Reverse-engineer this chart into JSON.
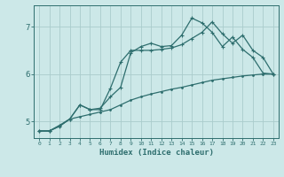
{
  "xlabel": "Humidex (Indice chaleur)",
  "bg_color": "#cce8e8",
  "grid_color": "#aacccc",
  "line_color": "#2e6e6e",
  "xlim": [
    -0.5,
    23.5
  ],
  "ylim": [
    4.65,
    7.45
  ],
  "yticks": [
    5,
    6,
    7
  ],
  "xticks": [
    0,
    1,
    2,
    3,
    4,
    5,
    6,
    7,
    8,
    9,
    10,
    11,
    12,
    13,
    14,
    15,
    16,
    17,
    18,
    19,
    20,
    21,
    22,
    23
  ],
  "line1_x": [
    0,
    1,
    2,
    3,
    4,
    5,
    6,
    7,
    8,
    9,
    10,
    11,
    12,
    13,
    14,
    15,
    16,
    17,
    18,
    19,
    20,
    21,
    22,
    23
  ],
  "line1_y": [
    4.8,
    4.8,
    4.9,
    5.05,
    5.1,
    5.15,
    5.2,
    5.25,
    5.35,
    5.45,
    5.52,
    5.58,
    5.63,
    5.68,
    5.72,
    5.77,
    5.82,
    5.87,
    5.9,
    5.93,
    5.96,
    5.98,
    6.0,
    6.0
  ],
  "line2_x": [
    0,
    1,
    2,
    3,
    4,
    5,
    6,
    7,
    8,
    9,
    10,
    11,
    12,
    13,
    14,
    15,
    16,
    17,
    18,
    19,
    20,
    21,
    22,
    23
  ],
  "line2_y": [
    4.8,
    4.8,
    4.9,
    5.05,
    5.35,
    5.25,
    5.25,
    5.7,
    6.25,
    6.5,
    6.5,
    6.5,
    6.52,
    6.55,
    6.62,
    6.75,
    6.88,
    7.1,
    6.85,
    6.65,
    6.82,
    6.5,
    6.35,
    6.0
  ],
  "line3_x": [
    0,
    1,
    2,
    3,
    4,
    5,
    6,
    7,
    8,
    9,
    10,
    11,
    12,
    13,
    14,
    15,
    16,
    17,
    18,
    19,
    20,
    21,
    22,
    23
  ],
  "line3_y": [
    4.8,
    4.8,
    4.92,
    5.05,
    5.35,
    5.25,
    5.28,
    5.52,
    5.72,
    6.45,
    6.58,
    6.65,
    6.58,
    6.6,
    6.82,
    7.18,
    7.08,
    6.88,
    6.58,
    6.78,
    6.52,
    6.35,
    6.02,
    6.0
  ]
}
